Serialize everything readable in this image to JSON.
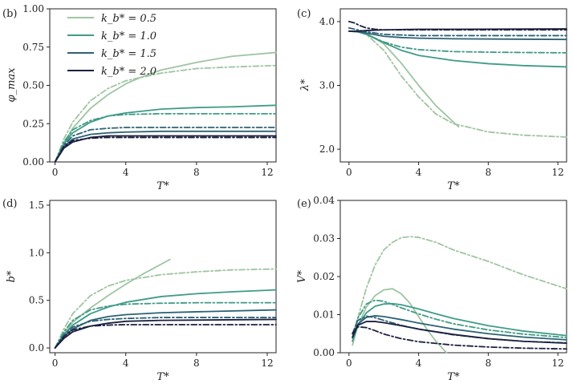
{
  "colors": {
    "k05": "#9fc4a2",
    "k10": "#3f9b86",
    "k15": "#2c6275",
    "k20": "#1c1f3f"
  },
  "legend": {
    "entries": [
      {
        "label": "k_b* = 0.5",
        "color_key": "k05"
      },
      {
        "label": "k_b* = 1.0",
        "color_key": "k10"
      },
      {
        "label": "k_b* = 1.5",
        "color_key": "k15"
      },
      {
        "label": "k_b* = 2.0",
        "color_key": "k20"
      }
    ]
  },
  "chart_data": [
    {
      "id": "b",
      "type": "line",
      "tag": "(b)",
      "xlabel": "T*",
      "ylabel": "φ_max",
      "xlim": [
        -0.3,
        12.5
      ],
      "ylim": [
        0,
        1.0
      ],
      "xticks": [
        0,
        4,
        8,
        12
      ],
      "yticks": [
        0,
        0.25,
        0.5,
        0.75,
        1.0
      ],
      "ytick_labels": [
        "0.00",
        "0.25",
        "0.50",
        "0.75",
        "1.00"
      ],
      "series": [
        {
          "color_key": "k05",
          "style": "solid",
          "x": [
            0,
            0.5,
            1,
            2,
            3,
            4,
            5,
            6,
            8,
            10,
            12.5
          ],
          "y": [
            0,
            0.12,
            0.22,
            0.35,
            0.44,
            0.51,
            0.56,
            0.6,
            0.65,
            0.69,
            0.715
          ]
        },
        {
          "color_key": "k05",
          "style": "dashdot",
          "x": [
            0,
            0.5,
            1,
            2,
            3,
            4,
            6,
            8,
            10,
            12.5
          ],
          "y": [
            0,
            0.15,
            0.26,
            0.4,
            0.48,
            0.53,
            0.58,
            0.61,
            0.62,
            0.63
          ]
        },
        {
          "color_key": "k10",
          "style": "solid",
          "x": [
            0,
            0.5,
            1,
            2,
            3,
            4,
            6,
            8,
            10,
            12.5
          ],
          "y": [
            0,
            0.12,
            0.19,
            0.26,
            0.3,
            0.32,
            0.345,
            0.355,
            0.36,
            0.37
          ]
        },
        {
          "color_key": "k10",
          "style": "dashdot",
          "x": [
            0,
            0.5,
            1,
            2,
            3,
            4,
            6,
            8,
            12.5
          ],
          "y": [
            0,
            0.13,
            0.21,
            0.27,
            0.3,
            0.31,
            0.315,
            0.315,
            0.315
          ]
        },
        {
          "color_key": "k15",
          "style": "solid",
          "x": [
            0,
            0.5,
            1,
            2,
            3,
            4,
            6,
            8,
            12.5
          ],
          "y": [
            0,
            0.1,
            0.15,
            0.18,
            0.19,
            0.195,
            0.2,
            0.2,
            0.2
          ]
        },
        {
          "color_key": "k15",
          "style": "dashdot",
          "x": [
            0,
            0.5,
            1,
            2,
            3,
            4,
            6,
            8,
            12.5
          ],
          "y": [
            0,
            0.11,
            0.17,
            0.21,
            0.22,
            0.225,
            0.225,
            0.225,
            0.225
          ]
        },
        {
          "color_key": "k20",
          "style": "solid",
          "x": [
            0,
            0.5,
            1,
            2,
            3,
            4,
            6,
            12.5
          ],
          "y": [
            0,
            0.09,
            0.13,
            0.16,
            0.17,
            0.17,
            0.17,
            0.17
          ]
        },
        {
          "color_key": "k20",
          "style": "dashdot",
          "x": [
            0,
            0.5,
            1,
            2,
            3,
            4,
            6,
            12.5
          ],
          "y": [
            0,
            0.1,
            0.14,
            0.155,
            0.16,
            0.16,
            0.16,
            0.16
          ]
        }
      ]
    },
    {
      "id": "c",
      "type": "line",
      "tag": "(c)",
      "xlabel": "T*",
      "ylabel": "λ*",
      "xlim": [
        -0.5,
        12.5
      ],
      "ylim": [
        1.8,
        4.2
      ],
      "xticks": [
        0,
        4,
        8,
        12
      ],
      "yticks": [
        2.0,
        3.0,
        4.0
      ],
      "ytick_labels": [
        "2.0",
        "3.0",
        "4.0"
      ],
      "series": [
        {
          "color_key": "k05",
          "style": "solid",
          "x": [
            0,
            0.5,
            1,
            2,
            3,
            4,
            5,
            6.3
          ],
          "y": [
            3.85,
            3.85,
            3.82,
            3.65,
            3.35,
            3.0,
            2.68,
            2.35
          ]
        },
        {
          "color_key": "k05",
          "style": "dashdot",
          "x": [
            0,
            0.5,
            1,
            2,
            3,
            4,
            5,
            6,
            8,
            10,
            12.5
          ],
          "y": [
            3.85,
            3.85,
            3.8,
            3.55,
            3.15,
            2.82,
            2.55,
            2.4,
            2.27,
            2.22,
            2.19
          ]
        },
        {
          "color_key": "k10",
          "style": "solid",
          "x": [
            0,
            0.5,
            1,
            2,
            3,
            4,
            6,
            8,
            10,
            12.5
          ],
          "y": [
            3.85,
            3.84,
            3.8,
            3.67,
            3.55,
            3.47,
            3.39,
            3.34,
            3.31,
            3.29
          ]
        },
        {
          "color_key": "k10",
          "style": "dashdot",
          "x": [
            0,
            0.5,
            1,
            2,
            3,
            4,
            6,
            8,
            12.5
          ],
          "y": [
            3.85,
            3.84,
            3.8,
            3.68,
            3.6,
            3.56,
            3.53,
            3.52,
            3.51
          ]
        },
        {
          "color_key": "k15",
          "style": "solid",
          "x": [
            0,
            0.5,
            1,
            2,
            3,
            4,
            6,
            12.5
          ],
          "y": [
            3.85,
            3.84,
            3.82,
            3.77,
            3.75,
            3.74,
            3.73,
            3.72
          ]
        },
        {
          "color_key": "k15",
          "style": "dashdot",
          "x": [
            0,
            0.5,
            1,
            2,
            3,
            4,
            6,
            12.5
          ],
          "y": [
            3.9,
            3.87,
            3.84,
            3.8,
            3.79,
            3.78,
            3.78,
            3.78
          ]
        },
        {
          "color_key": "k20",
          "style": "solid",
          "x": [
            0,
            0.5,
            1,
            2,
            3,
            4,
            6,
            12.5
          ],
          "y": [
            3.85,
            3.85,
            3.86,
            3.87,
            3.875,
            3.88,
            3.88,
            3.885
          ]
        },
        {
          "color_key": "k20",
          "style": "dashdot",
          "x": [
            0,
            0.3,
            0.6,
            1,
            1.5,
            2,
            3,
            4,
            6,
            12.5
          ],
          "y": [
            4.0,
            3.98,
            3.94,
            3.9,
            3.88,
            3.87,
            3.87,
            3.87,
            3.87,
            3.87
          ]
        }
      ]
    },
    {
      "id": "d",
      "type": "line",
      "tag": "(d)",
      "xlabel": "T*",
      "ylabel": "b*",
      "xlim": [
        -0.3,
        12.5
      ],
      "ylim": [
        -0.05,
        1.55
      ],
      "xticks": [
        0,
        4,
        8,
        12
      ],
      "yticks": [
        0.0,
        0.5,
        1.0,
        1.5
      ],
      "ytick_labels": [
        "0.0",
        "0.5",
        "1.0",
        "1.5"
      ],
      "series": [
        {
          "color_key": "k05",
          "style": "solid",
          "x": [
            0,
            0.5,
            1,
            2,
            3,
            4,
            5,
            6.5
          ],
          "y": [
            0,
            0.15,
            0.27,
            0.42,
            0.55,
            0.67,
            0.78,
            0.93
          ]
        },
        {
          "color_key": "k05",
          "style": "dashdot",
          "x": [
            0,
            0.5,
            1,
            2,
            3,
            4,
            6,
            8,
            10,
            12.5
          ],
          "y": [
            0,
            0.2,
            0.36,
            0.55,
            0.65,
            0.71,
            0.77,
            0.8,
            0.82,
            0.83
          ]
        },
        {
          "color_key": "k10",
          "style": "solid",
          "x": [
            0,
            0.5,
            1,
            2,
            3,
            4,
            6,
            8,
            10,
            12.5
          ],
          "y": [
            0,
            0.14,
            0.24,
            0.36,
            0.43,
            0.48,
            0.54,
            0.57,
            0.59,
            0.61
          ]
        },
        {
          "color_key": "k10",
          "style": "dashdot",
          "x": [
            0,
            0.5,
            1,
            2,
            3,
            4,
            6,
            8,
            12.5
          ],
          "y": [
            0,
            0.17,
            0.29,
            0.4,
            0.44,
            0.46,
            0.47,
            0.475,
            0.475
          ]
        },
        {
          "color_key": "k15",
          "style": "solid",
          "x": [
            0,
            0.5,
            1,
            2,
            3,
            4,
            6,
            8,
            12.5
          ],
          "y": [
            0,
            0.12,
            0.2,
            0.29,
            0.33,
            0.35,
            0.37,
            0.38,
            0.4
          ]
        },
        {
          "color_key": "k15",
          "style": "dashdot",
          "x": [
            0,
            0.5,
            1,
            2,
            3,
            4,
            6,
            12.5
          ],
          "y": [
            0,
            0.14,
            0.22,
            0.28,
            0.3,
            0.31,
            0.32,
            0.32
          ]
        },
        {
          "color_key": "k20",
          "style": "solid",
          "x": [
            0,
            0.5,
            1,
            2,
            3,
            4,
            6,
            12.5
          ],
          "y": [
            0,
            0.1,
            0.17,
            0.23,
            0.26,
            0.28,
            0.29,
            0.3
          ]
        },
        {
          "color_key": "k20",
          "style": "dashdot",
          "x": [
            0,
            0.5,
            1,
            2,
            3,
            4,
            6,
            12.5
          ],
          "y": [
            0,
            0.12,
            0.19,
            0.23,
            0.24,
            0.245,
            0.245,
            0.245
          ]
        }
      ]
    },
    {
      "id": "e",
      "type": "line",
      "tag": "(e)",
      "xlabel": "T*",
      "ylabel": "V*",
      "xlim": [
        -0.5,
        12.5
      ],
      "ylim": [
        0,
        0.04
      ],
      "xticks": [
        0,
        4,
        8,
        12
      ],
      "yticks": [
        0.0,
        0.01,
        0.02,
        0.03,
        0.04
      ],
      "ytick_labels": [
        "0.00",
        "0.01",
        "0.02",
        "0.03",
        "0.04"
      ],
      "series": [
        {
          "color_key": "k05",
          "style": "solid",
          "x": [
            0.2,
            0.5,
            1,
            1.5,
            2,
            2.5,
            3,
            3.5,
            4,
            4.5,
            5,
            5.6
          ],
          "y": [
            0.002,
            0.007,
            0.012,
            0.015,
            0.0165,
            0.0168,
            0.0155,
            0.013,
            0.0095,
            0.006,
            0.003,
            0.0
          ]
        },
        {
          "color_key": "k05",
          "style": "dashdot",
          "x": [
            0.2,
            0.5,
            1,
            1.5,
            2,
            2.5,
            3,
            3.5,
            4,
            5,
            6,
            8,
            10,
            12.5
          ],
          "y": [
            0.003,
            0.009,
            0.017,
            0.023,
            0.027,
            0.029,
            0.0302,
            0.0305,
            0.0303,
            0.029,
            0.027,
            0.024,
            0.0205,
            0.0168
          ]
        },
        {
          "color_key": "k10",
          "style": "solid",
          "x": [
            0.2,
            0.5,
            1,
            1.5,
            2,
            2.5,
            3,
            4,
            5,
            6,
            8,
            10,
            12.5
          ],
          "y": [
            0.003,
            0.007,
            0.0105,
            0.0122,
            0.0128,
            0.0129,
            0.0126,
            0.0115,
            0.0102,
            0.009,
            0.0071,
            0.0057,
            0.0045
          ]
        },
        {
          "color_key": "k10",
          "style": "dashdot",
          "x": [
            0.2,
            0.5,
            1,
            1.5,
            2,
            2.5,
            3,
            4,
            5,
            6,
            8,
            10,
            12.5
          ],
          "y": [
            0.004,
            0.009,
            0.0128,
            0.0138,
            0.0135,
            0.0127,
            0.0118,
            0.0102,
            0.0088,
            0.0076,
            0.006,
            0.0049,
            0.004
          ]
        },
        {
          "color_key": "k15",
          "style": "solid",
          "x": [
            0.2,
            0.5,
            1,
            1.5,
            2,
            3,
            4,
            6,
            8,
            10,
            12.5
          ],
          "y": [
            0.004,
            0.0075,
            0.0093,
            0.0097,
            0.0095,
            0.0087,
            0.0078,
            0.0062,
            0.005,
            0.0041,
            0.0034
          ]
        },
        {
          "color_key": "k15",
          "style": "dashdot",
          "x": [
            0.2,
            0.5,
            1,
            1.5,
            2,
            3,
            4,
            6,
            8,
            10,
            12.5
          ],
          "y": [
            0.005,
            0.0085,
            0.0096,
            0.0092,
            0.0085,
            0.0072,
            0.0062,
            0.0047,
            0.0037,
            0.003,
            0.0026
          ]
        },
        {
          "color_key": "k20",
          "style": "solid",
          "x": [
            0.2,
            0.5,
            1,
            1.5,
            2,
            3,
            4,
            6,
            8,
            10,
            12.5
          ],
          "y": [
            0.004,
            0.0072,
            0.0082,
            0.0082,
            0.0079,
            0.0071,
            0.0062,
            0.0048,
            0.0037,
            0.003,
            0.0025
          ]
        },
        {
          "color_key": "k20",
          "style": "dashdot",
          "x": [
            0.2,
            0.5,
            1,
            1.5,
            2,
            3,
            4,
            6,
            8,
            10,
            12.5
          ],
          "y": [
            0.005,
            0.0068,
            0.0066,
            0.0058,
            0.0049,
            0.0037,
            0.0029,
            0.002,
            0.0015,
            0.0012,
            0.001
          ]
        }
      ]
    }
  ]
}
